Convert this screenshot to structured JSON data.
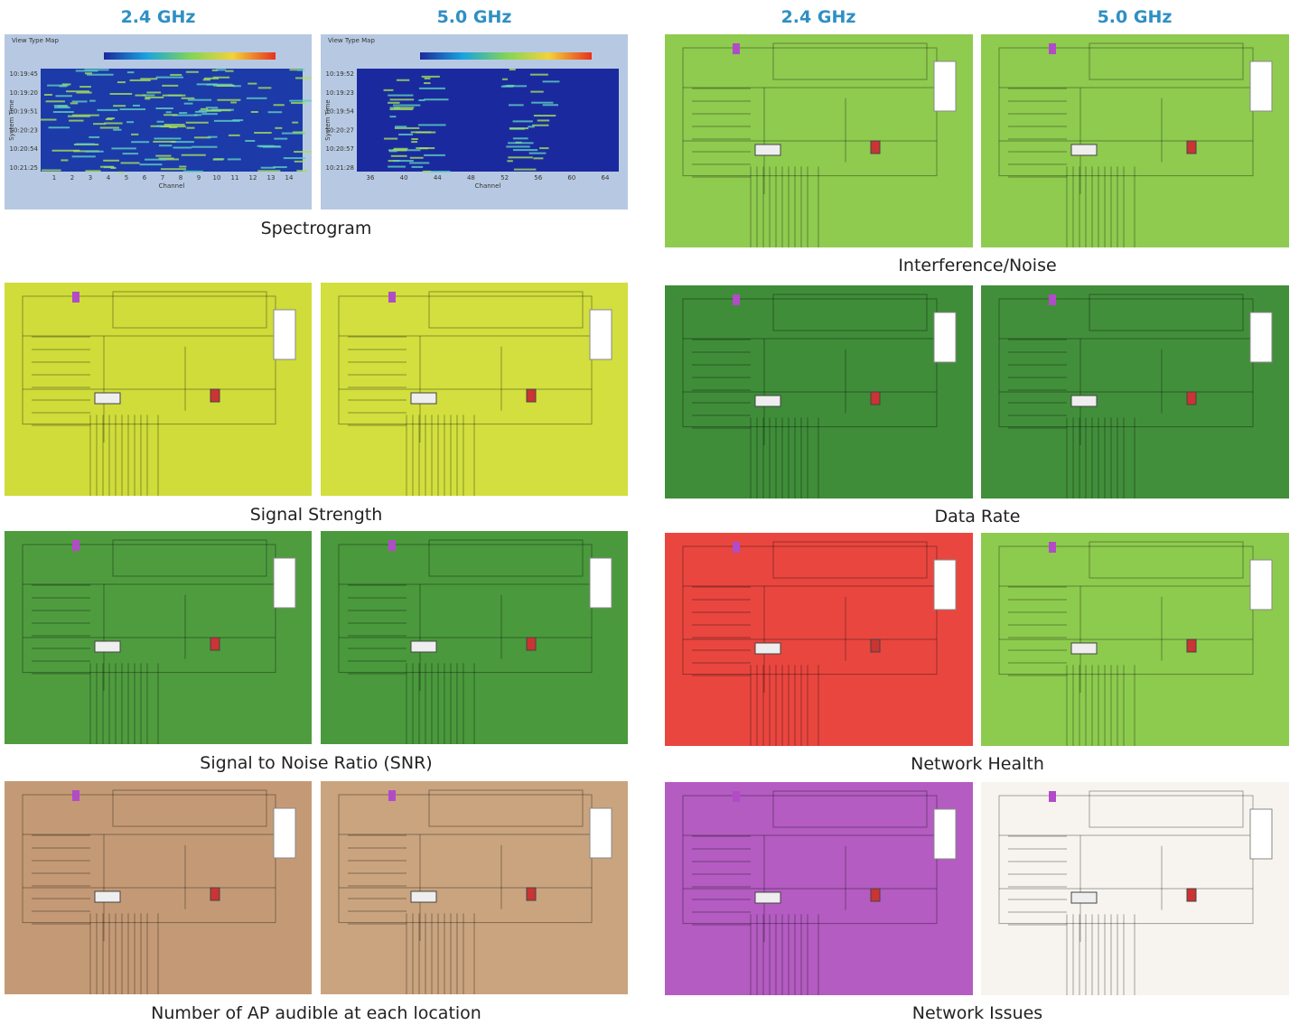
{
  "left": {
    "bands": [
      "2.4 GHz",
      "5.0 GHz"
    ],
    "spectrogram": {
      "caption": "Spectrogram",
      "title": "View Type Map",
      "y_label": "System Time",
      "x_label": "Channel",
      "panels": [
        {
          "times": [
            "10:19:45",
            "10:19:20",
            "10:19:51",
            "10:20:23",
            "10:20:54",
            "10:21:25"
          ],
          "channels": [
            "1",
            "2",
            "3",
            "4",
            "5",
            "6",
            "7",
            "8",
            "9",
            "10",
            "11",
            "12",
            "13",
            "14"
          ]
        },
        {
          "times": [
            "10:19:52",
            "10:19:23",
            "10:19:54",
            "10:20:27",
            "10:20:57",
            "10:21:28"
          ],
          "channels": [
            "36",
            "40",
            "44",
            "48",
            "52",
            "56",
            "60",
            "64"
          ]
        }
      ]
    },
    "maps": [
      {
        "caption": "Signal Strength",
        "fills": [
          "#cfdc3a",
          "#d2df3e"
        ]
      },
      {
        "caption": "Signal to Noise Ratio (SNR)",
        "fills": [
          "#4f9c3f",
          "#4a993c"
        ]
      },
      {
        "caption": "Number of AP audible at each location",
        "fills": [
          "#c49a76",
          "#c9a47f"
        ]
      }
    ]
  },
  "right": {
    "bands": [
      "2.4 GHz",
      "5.0 GHz"
    ],
    "maps": [
      {
        "caption": "Interference/Noise",
        "fills": [
          "#8ecb4f",
          "#8ecb4f"
        ]
      },
      {
        "caption": "Data Rate",
        "fills": [
          "#3f8d39",
          "#428f3b"
        ]
      },
      {
        "caption": "Network Health",
        "fills": [
          "#e9463f",
          "#8ccb4e"
        ]
      },
      {
        "caption": "Network Issues",
        "fills": [
          "#b45cc2",
          "#f7f4ef"
        ]
      }
    ]
  }
}
